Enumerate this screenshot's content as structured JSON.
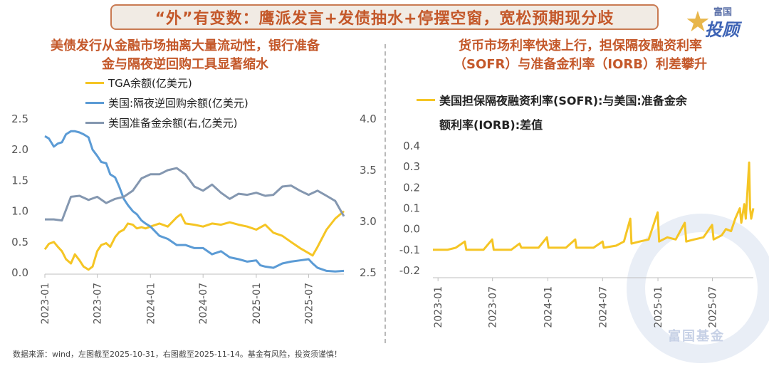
{
  "banner": {
    "title": "“外”有变数：鹰派发言+发债抽水+停摆空窗，宽松预期现分歧"
  },
  "logo": {
    "line1": "富国",
    "line2": "投顾",
    "star_glyph": "★"
  },
  "watermark": {
    "text": "富国基金"
  },
  "footer": {
    "text": "数据来源：wind，左图截至2025-10-31，右图截至2025-11-14。基金有风险，投资须谨慎！"
  },
  "colors": {
    "tga": "#f5c524",
    "rrp": "#5b9bd5",
    "reserves": "#8497b0",
    "sofr": "#f5c524",
    "accent": "#c4582a"
  },
  "chart_data": [
    {
      "type": "line",
      "title": "美债发行从金融市场抽离大量流动性，银行准备金与隔夜逆回购工具显著缩水",
      "title_lines": [
        "美债发行从金融市场抽离大量流动性，银行准备",
        "金与隔夜逆回购工具显著缩水"
      ],
      "x_ticks": [
        "2023-01",
        "2023-07",
        "2024-01",
        "2024-07",
        "2025-01",
        "2025-07"
      ],
      "x_range": [
        "2023-01-01",
        "2025-10-31"
      ],
      "y_left": {
        "ticks": [
          "0.0",
          "0.5",
          "1.0",
          "1.5",
          "2.0",
          "2.5"
        ],
        "range": [
          0,
          2.5
        ]
      },
      "y_right": {
        "ticks": [
          "2.5",
          "3.0",
          "3.5",
          "4.0"
        ],
        "range": [
          2.5,
          4.0
        ]
      },
      "grid": false,
      "legend_position": "top-left",
      "series": [
        {
          "name": "TGA余额(亿美元)",
          "axis": "left",
          "color": "#f5c524",
          "points": [
            [
              "2023-01-01",
              0.38
            ],
            [
              "2023-01-15",
              0.47
            ],
            [
              "2023-02-01",
              0.5
            ],
            [
              "2023-02-15",
              0.42
            ],
            [
              "2023-03-01",
              0.35
            ],
            [
              "2023-03-15",
              0.22
            ],
            [
              "2023-04-01",
              0.15
            ],
            [
              "2023-04-15",
              0.3
            ],
            [
              "2023-05-01",
              0.2
            ],
            [
              "2023-05-15",
              0.1
            ],
            [
              "2023-06-01",
              0.05
            ],
            [
              "2023-06-15",
              0.1
            ],
            [
              "2023-07-01",
              0.35
            ],
            [
              "2023-07-15",
              0.45
            ],
            [
              "2023-08-01",
              0.48
            ],
            [
              "2023-08-15",
              0.42
            ],
            [
              "2023-09-01",
              0.58
            ],
            [
              "2023-09-15",
              0.66
            ],
            [
              "2023-10-01",
              0.7
            ],
            [
              "2023-10-15",
              0.8
            ],
            [
              "2023-11-01",
              0.78
            ],
            [
              "2023-11-15",
              0.72
            ],
            [
              "2023-12-01",
              0.74
            ],
            [
              "2023-12-15",
              0.72
            ],
            [
              "2024-01-01",
              0.75
            ],
            [
              "2024-02-01",
              0.8
            ],
            [
              "2024-03-01",
              0.75
            ],
            [
              "2024-04-01",
              0.9
            ],
            [
              "2024-04-15",
              0.95
            ],
            [
              "2024-05-01",
              0.8
            ],
            [
              "2024-06-01",
              0.78
            ],
            [
              "2024-07-01",
              0.75
            ],
            [
              "2024-08-01",
              0.8
            ],
            [
              "2024-09-01",
              0.78
            ],
            [
              "2024-10-01",
              0.82
            ],
            [
              "2024-11-01",
              0.78
            ],
            [
              "2024-12-01",
              0.75
            ],
            [
              "2025-01-01",
              0.7
            ],
            [
              "2025-02-01",
              0.78
            ],
            [
              "2025-03-01",
              0.65
            ],
            [
              "2025-04-01",
              0.6
            ],
            [
              "2025-05-01",
              0.5
            ],
            [
              "2025-06-01",
              0.4
            ],
            [
              "2025-07-01",
              0.32
            ],
            [
              "2025-07-15",
              0.28
            ],
            [
              "2025-08-01",
              0.42
            ],
            [
              "2025-09-01",
              0.7
            ],
            [
              "2025-10-01",
              0.88
            ],
            [
              "2025-10-31",
              1.0
            ]
          ]
        },
        {
          "name": "美国:隔夜逆回购余额(亿美元)",
          "axis": "left",
          "color": "#5b9bd5",
          "points": [
            [
              "2023-01-01",
              2.22
            ],
            [
              "2023-01-15",
              2.18
            ],
            [
              "2023-02-01",
              2.05
            ],
            [
              "2023-02-15",
              2.1
            ],
            [
              "2023-03-01",
              2.12
            ],
            [
              "2023-03-15",
              2.25
            ],
            [
              "2023-04-01",
              2.3
            ],
            [
              "2023-04-15",
              2.3
            ],
            [
              "2023-05-01",
              2.28
            ],
            [
              "2023-05-15",
              2.25
            ],
            [
              "2023-06-01",
              2.2
            ],
            [
              "2023-06-15",
              2.0
            ],
            [
              "2023-07-01",
              1.9
            ],
            [
              "2023-07-15",
              1.8
            ],
            [
              "2023-08-01",
              1.78
            ],
            [
              "2023-08-15",
              1.6
            ],
            [
              "2023-09-01",
              1.55
            ],
            [
              "2023-09-15",
              1.4
            ],
            [
              "2023-10-01",
              1.2
            ],
            [
              "2023-10-15",
              1.1
            ],
            [
              "2023-11-01",
              1.0
            ],
            [
              "2023-11-15",
              0.95
            ],
            [
              "2023-12-01",
              0.85
            ],
            [
              "2023-12-15",
              0.8
            ],
            [
              "2024-01-01",
              0.75
            ],
            [
              "2024-02-01",
              0.6
            ],
            [
              "2024-03-01",
              0.55
            ],
            [
              "2024-04-01",
              0.45
            ],
            [
              "2024-05-01",
              0.45
            ],
            [
              "2024-06-01",
              0.4
            ],
            [
              "2024-07-01",
              0.4
            ],
            [
              "2024-08-01",
              0.3
            ],
            [
              "2024-09-01",
              0.35
            ],
            [
              "2024-10-01",
              0.25
            ],
            [
              "2024-11-01",
              0.22
            ],
            [
              "2024-12-01",
              0.18
            ],
            [
              "2025-01-01",
              0.2
            ],
            [
              "2025-01-15",
              0.12
            ],
            [
              "2025-02-01",
              0.1
            ],
            [
              "2025-03-01",
              0.08
            ],
            [
              "2025-04-01",
              0.15
            ],
            [
              "2025-05-01",
              0.18
            ],
            [
              "2025-06-01",
              0.2
            ],
            [
              "2025-07-01",
              0.22
            ],
            [
              "2025-07-15",
              0.15
            ],
            [
              "2025-08-01",
              0.08
            ],
            [
              "2025-09-01",
              0.03
            ],
            [
              "2025-10-01",
              0.02
            ],
            [
              "2025-10-31",
              0.03
            ]
          ]
        },
        {
          "name": "美国准备金余额(右,亿美元)",
          "axis": "right",
          "color": "#8497b0",
          "points": [
            [
              "2023-01-01",
              3.02
            ],
            [
              "2023-02-01",
              3.02
            ],
            [
              "2023-03-01",
              3.01
            ],
            [
              "2023-04-01",
              3.24
            ],
            [
              "2023-05-01",
              3.25
            ],
            [
              "2023-06-01",
              3.21
            ],
            [
              "2023-07-01",
              3.24
            ],
            [
              "2023-08-01",
              3.18
            ],
            [
              "2023-09-01",
              3.22
            ],
            [
              "2023-10-01",
              3.24
            ],
            [
              "2023-11-01",
              3.3
            ],
            [
              "2023-12-01",
              3.42
            ],
            [
              "2024-01-01",
              3.46
            ],
            [
              "2024-02-01",
              3.46
            ],
            [
              "2024-03-01",
              3.5
            ],
            [
              "2024-04-01",
              3.52
            ],
            [
              "2024-05-01",
              3.46
            ],
            [
              "2024-06-01",
              3.34
            ],
            [
              "2024-07-01",
              3.3
            ],
            [
              "2024-08-01",
              3.36
            ],
            [
              "2024-09-01",
              3.28
            ],
            [
              "2024-10-01",
              3.22
            ],
            [
              "2024-11-01",
              3.27
            ],
            [
              "2024-12-01",
              3.26
            ],
            [
              "2025-01-01",
              3.28
            ],
            [
              "2025-02-01",
              3.25
            ],
            [
              "2025-03-01",
              3.26
            ],
            [
              "2025-04-01",
              3.34
            ],
            [
              "2025-05-01",
              3.35
            ],
            [
              "2025-06-01",
              3.3
            ],
            [
              "2025-07-01",
              3.26
            ],
            [
              "2025-08-01",
              3.3
            ],
            [
              "2025-09-01",
              3.25
            ],
            [
              "2025-10-01",
              3.2
            ],
            [
              "2025-10-31",
              3.05
            ]
          ]
        }
      ]
    },
    {
      "type": "line",
      "title": "货币市场利率快速上行，担保隔夜融资利率（SOFR）与准备金利率（IORB）利差攀升",
      "title_lines": [
        "货币市场利率快速上行，担保隔夜融资利率",
        "（SOFR）与准备金利率（IORB）利差攀升"
      ],
      "x_ticks": [
        "2023-01",
        "2023-07",
        "2024-01",
        "2024-07",
        "2025-01",
        "2025-07"
      ],
      "x_range": [
        "2022-12-15",
        "2025-11-14"
      ],
      "y_left": {
        "ticks": [
          "-0.2",
          "-0.1",
          "0.0",
          "0.1",
          "0.2",
          "0.3",
          "0.4"
        ],
        "range": [
          -0.2,
          0.4
        ]
      },
      "grid": false,
      "legend_position": "top-left",
      "series": [
        {
          "name": "美国担保隔夜融资利率(SOFR):与美国:准备金余额利率(IORB):差值",
          "legend_lines": [
            "美国担保隔夜融资利率(SOFR):与美国:准备金余",
            "额利率(IORB):差值"
          ],
          "color": "#f5c524",
          "points": [
            [
              "2022-12-15",
              -0.1
            ],
            [
              "2023-02-01",
              -0.1
            ],
            [
              "2023-03-01",
              -0.09
            ],
            [
              "2023-03-31",
              -0.06
            ],
            [
              "2023-04-05",
              -0.1
            ],
            [
              "2023-06-01",
              -0.1
            ],
            [
              "2023-06-30",
              -0.05
            ],
            [
              "2023-07-05",
              -0.1
            ],
            [
              "2023-09-01",
              -0.1
            ],
            [
              "2023-09-29",
              -0.07
            ],
            [
              "2023-10-05",
              -0.09
            ],
            [
              "2023-12-01",
              -0.09
            ],
            [
              "2023-12-29",
              -0.04
            ],
            [
              "2024-01-03",
              -0.09
            ],
            [
              "2024-03-01",
              -0.09
            ],
            [
              "2024-04-01",
              -0.05
            ],
            [
              "2024-04-05",
              -0.09
            ],
            [
              "2024-06-01",
              -0.09
            ],
            [
              "2024-07-01",
              -0.06
            ],
            [
              "2024-07-05",
              -0.09
            ],
            [
              "2024-08-15",
              -0.08
            ],
            [
              "2024-09-10",
              -0.06
            ],
            [
              "2024-10-01",
              0.05
            ],
            [
              "2024-10-05",
              -0.07
            ],
            [
              "2024-11-01",
              -0.06
            ],
            [
              "2024-12-01",
              -0.05
            ],
            [
              "2024-12-31",
              0.08
            ],
            [
              "2025-01-05",
              -0.06
            ],
            [
              "2025-02-01",
              -0.04
            ],
            [
              "2025-03-01",
              -0.05
            ],
            [
              "2025-03-31",
              0.03
            ],
            [
              "2025-04-05",
              -0.06
            ],
            [
              "2025-05-01",
              -0.05
            ],
            [
              "2025-06-01",
              -0.04
            ],
            [
              "2025-06-30",
              0.02
            ],
            [
              "2025-07-05",
              -0.05
            ],
            [
              "2025-08-01",
              -0.03
            ],
            [
              "2025-08-15",
              0.0
            ],
            [
              "2025-09-01",
              -0.01
            ],
            [
              "2025-09-15",
              0.05
            ],
            [
              "2025-09-30",
              0.1
            ],
            [
              "2025-10-05",
              0.03
            ],
            [
              "2025-10-15",
              0.12
            ],
            [
              "2025-10-20",
              0.05
            ],
            [
              "2025-10-31",
              0.32
            ],
            [
              "2025-11-03",
              0.1
            ],
            [
              "2025-11-07",
              0.05
            ],
            [
              "2025-11-14",
              0.1
            ]
          ]
        }
      ]
    }
  ]
}
